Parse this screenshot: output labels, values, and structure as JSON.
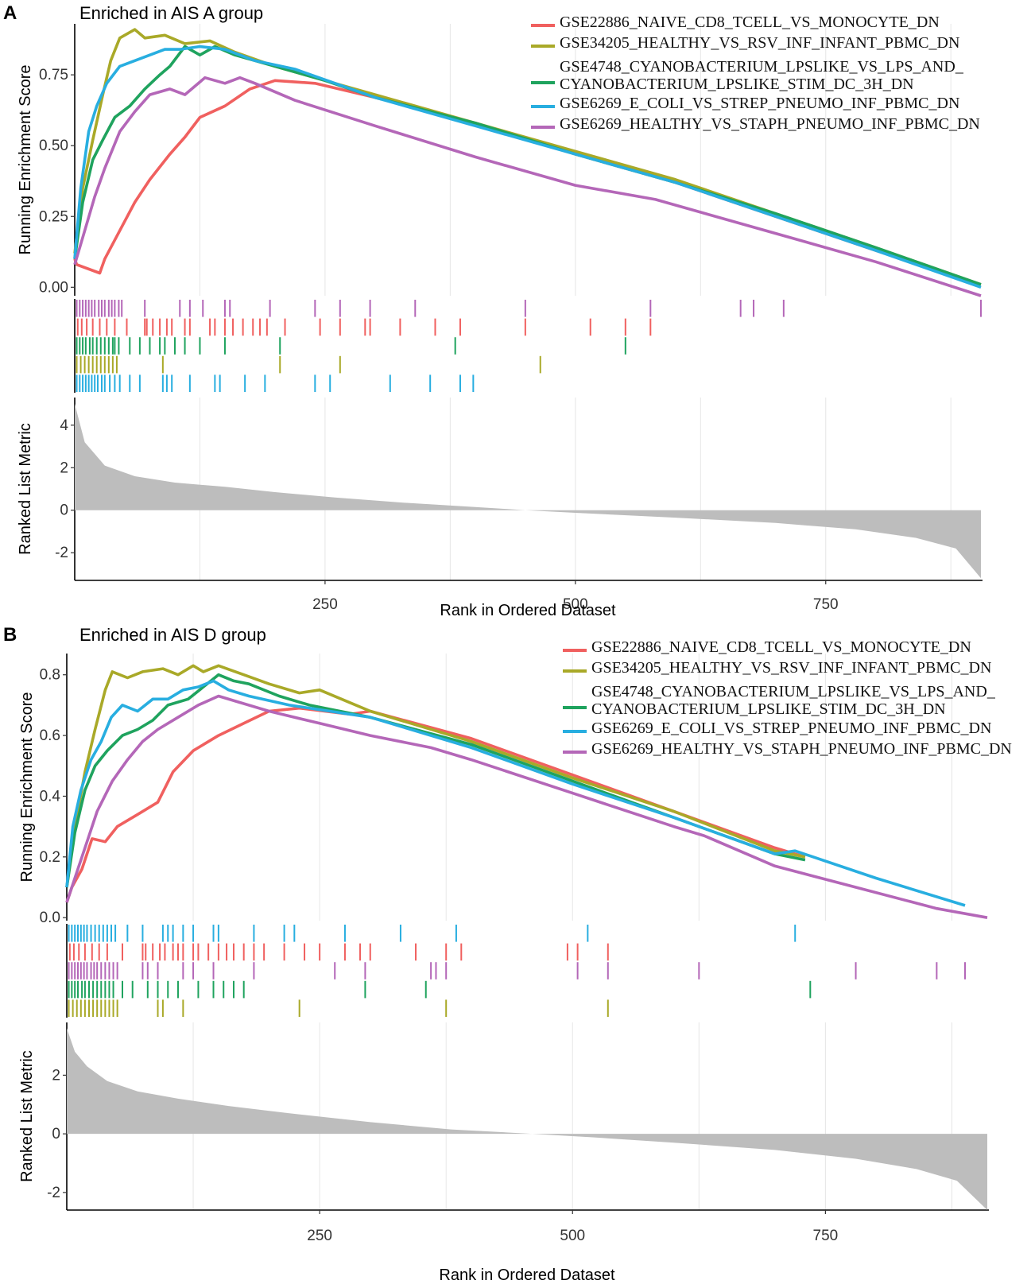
{
  "chart_data": [
    {
      "type": "line",
      "panel_label": "A",
      "title": "Enriched in AIS A group",
      "ylabel": "Running Enrichment Score",
      "ylabel_metric": "Ranked List Metric",
      "xlabel": "Rank in Ordered Dataset",
      "xlim": [
        0,
        905
      ],
      "ylim": [
        -0.03,
        0.93
      ],
      "metric_ylim": [
        -3.3,
        5.3
      ],
      "metric_profile": [
        [
          0,
          5.0
        ],
        [
          10,
          3.2
        ],
        [
          30,
          2.1
        ],
        [
          60,
          1.6
        ],
        [
          100,
          1.3
        ],
        [
          150,
          1.1
        ],
        [
          200,
          0.85
        ],
        [
          260,
          0.6
        ],
        [
          330,
          0.35
        ],
        [
          400,
          0.15
        ],
        [
          450,
          0.0
        ],
        [
          500,
          -0.12
        ],
        [
          600,
          -0.35
        ],
        [
          700,
          -0.6
        ],
        [
          780,
          -0.9
        ],
        [
          840,
          -1.3
        ],
        [
          880,
          -1.8
        ],
        [
          905,
          -3.2
        ]
      ],
      "y_ticks": [
        0.0,
        0.25,
        0.5,
        0.75
      ],
      "y_tick_labels": [
        "0.00",
        "0.25",
        "0.50",
        "0.75"
      ],
      "metric_ticks": [
        -2,
        0,
        2,
        4
      ],
      "metric_tick_labels": [
        "-2",
        "0",
        "2",
        "4"
      ],
      "x_ticks": [
        250,
        500,
        750
      ],
      "x_tick_labels": [
        "250",
        "500",
        "750"
      ],
      "series": [
        {
          "name": "GSE22886_NAIVE_CD8_TCELL_VS_MONOCYTE_DN",
          "color": "#f0605f",
          "x": [
            0,
            2,
            25,
            30,
            42,
            60,
            75,
            95,
            110,
            125,
            150,
            175,
            200,
            240,
            300,
            400,
            500,
            600,
            700,
            800,
            905
          ],
          "y": [
            0.1,
            0.08,
            0.05,
            0.1,
            0.18,
            0.3,
            0.38,
            0.47,
            0.53,
            0.6,
            0.64,
            0.7,
            0.73,
            0.72,
            0.67,
            0.58,
            0.47,
            0.37,
            0.25,
            0.13,
            0.01
          ]
        },
        {
          "name": "GSE34205_HEALTHY_VS_RSV_INF_INFANT_PBMC_DN",
          "color": "#a9a928",
          "x": [
            0,
            8,
            18,
            28,
            36,
            45,
            60,
            70,
            90,
            110,
            135,
            160,
            200,
            250,
            300,
            400,
            500,
            600,
            700,
            800,
            905
          ],
          "y": [
            0.12,
            0.35,
            0.52,
            0.68,
            0.8,
            0.88,
            0.91,
            0.88,
            0.89,
            0.86,
            0.87,
            0.83,
            0.78,
            0.73,
            0.68,
            0.58,
            0.48,
            0.38,
            0.26,
            0.14,
            0.01
          ]
        },
        {
          "name": "GSE4748_CYANOBACTERIUM_LPSLIKE_VS_LPS_AND_\nCYANOBACTERIUM_LPSLIKE_STIM_DC_3H_DN",
          "color": "#1fa35e",
          "x": [
            0,
            8,
            18,
            28,
            40,
            55,
            70,
            85,
            95,
            110,
            125,
            140,
            160,
            200,
            250,
            300,
            400,
            500,
            600,
            700,
            800,
            905
          ],
          "y": [
            0.1,
            0.3,
            0.45,
            0.52,
            0.6,
            0.64,
            0.7,
            0.75,
            0.78,
            0.85,
            0.82,
            0.85,
            0.82,
            0.78,
            0.73,
            0.67,
            0.58,
            0.47,
            0.37,
            0.26,
            0.14,
            0.01
          ]
        },
        {
          "name": "GSE6269_E_COLI_VS_STREP_PNEUMO_INF_PBMC_DN",
          "color": "#28aee0",
          "x": [
            0,
            6,
            14,
            22,
            32,
            45,
            60,
            75,
            90,
            105,
            125,
            150,
            180,
            220,
            300,
            400,
            500,
            600,
            700,
            800,
            905
          ],
          "y": [
            0.1,
            0.35,
            0.55,
            0.64,
            0.72,
            0.78,
            0.8,
            0.82,
            0.84,
            0.84,
            0.85,
            0.84,
            0.8,
            0.77,
            0.67,
            0.57,
            0.47,
            0.37,
            0.25,
            0.13,
            0.0
          ]
        },
        {
          "name": "GSE6269_HEALTHY_VS_STAPH_PNEUMO_INF_PBMC_DN",
          "color": "#b467b8",
          "x": [
            0,
            10,
            20,
            30,
            45,
            60,
            75,
            95,
            110,
            130,
            150,
            165,
            180,
            220,
            300,
            400,
            500,
            580,
            600,
            700,
            800,
            905
          ],
          "y": [
            0.08,
            0.2,
            0.32,
            0.42,
            0.55,
            0.62,
            0.68,
            0.7,
            0.68,
            0.74,
            0.72,
            0.74,
            0.72,
            0.66,
            0.57,
            0.46,
            0.36,
            0.31,
            0.29,
            0.19,
            0.09,
            -0.03
          ]
        }
      ],
      "hit_rows": [
        {
          "color": "#b467b8",
          "positions": [
            2,
            5,
            8,
            11,
            14,
            17,
            20,
            24,
            27,
            30,
            34,
            37,
            40,
            44,
            47,
            70,
            105,
            115,
            128,
            150,
            155,
            195,
            240,
            265,
            295,
            340,
            450,
            575,
            665,
            678,
            708,
            905
          ]
        },
        {
          "color": "#f0605f",
          "positions": [
            3,
            7,
            12,
            18,
            25,
            32,
            40,
            52,
            70,
            72,
            78,
            85,
            92,
            97,
            110,
            115,
            135,
            140,
            150,
            158,
            168,
            178,
            185,
            192,
            210,
            245,
            265,
            290,
            295,
            325,
            360,
            385,
            450,
            515,
            550,
            575
          ]
        },
        {
          "color": "#1fa35e",
          "positions": [
            2,
            5,
            8,
            11,
            15,
            18,
            22,
            26,
            30,
            34,
            38,
            40,
            44,
            55,
            65,
            75,
            85,
            90,
            100,
            110,
            125,
            150,
            205,
            380,
            550
          ]
        },
        {
          "color": "#a9a928",
          "positions": [
            2,
            6,
            10,
            14,
            18,
            22,
            26,
            30,
            34,
            38,
            42,
            88,
            205,
            265,
            465
          ]
        },
        {
          "color": "#28aee0",
          "positions": [
            2,
            5,
            8,
            11,
            14,
            17,
            20,
            23,
            27,
            30,
            35,
            40,
            45,
            55,
            65,
            88,
            92,
            97,
            115,
            140,
            145,
            170,
            190,
            240,
            255,
            315,
            355,
            385,
            398
          ]
        }
      ]
    },
    {
      "type": "line",
      "panel_label": "B",
      "title": "Enriched in AIS D group",
      "ylabel": "Running Enrichment Score",
      "ylabel_metric": "Ranked List Metric",
      "xlabel": "Rank in Ordered Dataset",
      "xlim": [
        0,
        910
      ],
      "ylim": [
        -0.01,
        0.87
      ],
      "metric_ylim": [
        -2.6,
        3.8
      ],
      "metric_profile": [
        [
          0,
          3.6
        ],
        [
          8,
          2.8
        ],
        [
          20,
          2.3
        ],
        [
          40,
          1.8
        ],
        [
          70,
          1.45
        ],
        [
          110,
          1.2
        ],
        [
          160,
          0.95
        ],
        [
          220,
          0.7
        ],
        [
          300,
          0.4
        ],
        [
          380,
          0.15
        ],
        [
          460,
          0.0
        ],
        [
          520,
          -0.12
        ],
        [
          600,
          -0.3
        ],
        [
          700,
          -0.55
        ],
        [
          780,
          -0.85
        ],
        [
          840,
          -1.2
        ],
        [
          880,
          -1.6
        ],
        [
          910,
          -2.6
        ]
      ],
      "y_ticks": [
        0.0,
        0.2,
        0.4,
        0.6,
        0.8
      ],
      "y_tick_labels": [
        "0.0",
        "0.2",
        "0.4",
        "0.6",
        "0.8"
      ],
      "metric_ticks": [
        -2,
        0,
        2
      ],
      "metric_tick_labels": [
        "-2",
        "0",
        "2"
      ],
      "x_ticks": [
        250,
        500,
        750
      ],
      "x_tick_labels": [
        "250",
        "500",
        "750"
      ],
      "series": [
        {
          "name": "GSE22886_NAIVE_CD8_TCELL_VS_MONOCYTE_DN",
          "color": "#f0605f",
          "x": [
            0,
            5,
            15,
            25,
            38,
            50,
            70,
            90,
            105,
            125,
            150,
            175,
            200,
            230,
            280,
            300,
            400,
            500,
            600,
            700,
            730
          ],
          "y": [
            0.05,
            0.1,
            0.16,
            0.26,
            0.25,
            0.3,
            0.34,
            0.38,
            0.48,
            0.55,
            0.6,
            0.64,
            0.68,
            0.69,
            0.67,
            0.68,
            0.59,
            0.47,
            0.35,
            0.23,
            0.2
          ]
        },
        {
          "name": "GSE34205_HEALTHY_VS_RSV_INF_INFANT_PBMC_DN",
          "color": "#a9a928",
          "x": [
            0,
            8,
            18,
            28,
            38,
            45,
            60,
            75,
            95,
            110,
            125,
            135,
            150,
            175,
            200,
            230,
            250,
            300,
            400,
            500,
            600,
            700,
            730
          ],
          "y": [
            0.1,
            0.3,
            0.48,
            0.62,
            0.75,
            0.81,
            0.79,
            0.81,
            0.82,
            0.8,
            0.83,
            0.81,
            0.83,
            0.8,
            0.77,
            0.74,
            0.75,
            0.68,
            0.58,
            0.46,
            0.35,
            0.22,
            0.2
          ]
        },
        {
          "name": "GSE4748_CYANOBACTERIUM_LPSLIKE_VS_LPS_AND_\nCYANOBACTERIUM_LPSLIKE_STIM_DC_3H_DN",
          "color": "#1fa35e",
          "x": [
            0,
            8,
            18,
            28,
            40,
            55,
            70,
            85,
            100,
            120,
            135,
            150,
            165,
            180,
            210,
            240,
            300,
            400,
            500,
            600,
            700,
            730
          ],
          "y": [
            0.1,
            0.28,
            0.42,
            0.5,
            0.55,
            0.6,
            0.62,
            0.65,
            0.7,
            0.72,
            0.76,
            0.8,
            0.78,
            0.77,
            0.73,
            0.7,
            0.66,
            0.57,
            0.45,
            0.33,
            0.21,
            0.19
          ]
        },
        {
          "name": "GSE6269_E_COLI_VS_STREP_PNEUMO_INF_PBMC_DN",
          "color": "#28aee0",
          "x": [
            0,
            6,
            14,
            24,
            34,
            44,
            55,
            70,
            85,
            100,
            115,
            130,
            145,
            160,
            180,
            220,
            300,
            400,
            500,
            600,
            700,
            720,
            800,
            888
          ],
          "y": [
            0.1,
            0.3,
            0.42,
            0.52,
            0.58,
            0.66,
            0.7,
            0.68,
            0.72,
            0.72,
            0.75,
            0.76,
            0.78,
            0.75,
            0.73,
            0.7,
            0.66,
            0.56,
            0.44,
            0.33,
            0.21,
            0.22,
            0.13,
            0.04
          ]
        },
        {
          "name": "GSE6269_HEALTHY_VS_STAPH_PNEUMO_INF_PBMC_DN",
          "color": "#b467b8",
          "x": [
            0,
            10,
            20,
            30,
            45,
            60,
            75,
            90,
            110,
            130,
            150,
            170,
            200,
            250,
            300,
            360,
            400,
            500,
            600,
            630,
            700,
            780,
            860,
            910
          ],
          "y": [
            0.05,
            0.15,
            0.25,
            0.35,
            0.45,
            0.52,
            0.58,
            0.62,
            0.66,
            0.7,
            0.73,
            0.71,
            0.68,
            0.64,
            0.6,
            0.56,
            0.52,
            0.41,
            0.3,
            0.27,
            0.17,
            0.1,
            0.03,
            0.0
          ]
        }
      ],
      "hit_rows": [
        {
          "color": "#28aee0",
          "positions": [
            2,
            5,
            8,
            11,
            14,
            17,
            20,
            24,
            28,
            32,
            36,
            40,
            44,
            48,
            60,
            75,
            95,
            100,
            105,
            115,
            125,
            145,
            150,
            185,
            215,
            225,
            275,
            330,
            385,
            515,
            720
          ]
        },
        {
          "color": "#f0605f",
          "positions": [
            3,
            7,
            12,
            18,
            25,
            32,
            40,
            55,
            75,
            78,
            85,
            92,
            97,
            105,
            110,
            115,
            125,
            130,
            140,
            150,
            158,
            165,
            175,
            185,
            195,
            215,
            235,
            250,
            275,
            290,
            300,
            345,
            375,
            390,
            495,
            505,
            535
          ]
        },
        {
          "color": "#b467b8",
          "positions": [
            2,
            5,
            8,
            11,
            14,
            17,
            20,
            24,
            27,
            30,
            34,
            38,
            42,
            46,
            50,
            75,
            80,
            90,
            115,
            125,
            145,
            185,
            265,
            295,
            360,
            365,
            375,
            505,
            535,
            625,
            780,
            860,
            888
          ]
        },
        {
          "color": "#1fa35e",
          "positions": [
            2,
            5,
            8,
            11,
            15,
            18,
            22,
            26,
            30,
            34,
            38,
            42,
            46,
            55,
            65,
            80,
            90,
            100,
            110,
            130,
            145,
            155,
            165,
            175,
            295,
            355,
            735
          ]
        },
        {
          "color": "#a9a928",
          "positions": [
            2,
            6,
            10,
            14,
            18,
            22,
            26,
            30,
            34,
            38,
            42,
            46,
            50,
            90,
            95,
            115,
            230,
            375,
            535
          ]
        }
      ]
    }
  ]
}
